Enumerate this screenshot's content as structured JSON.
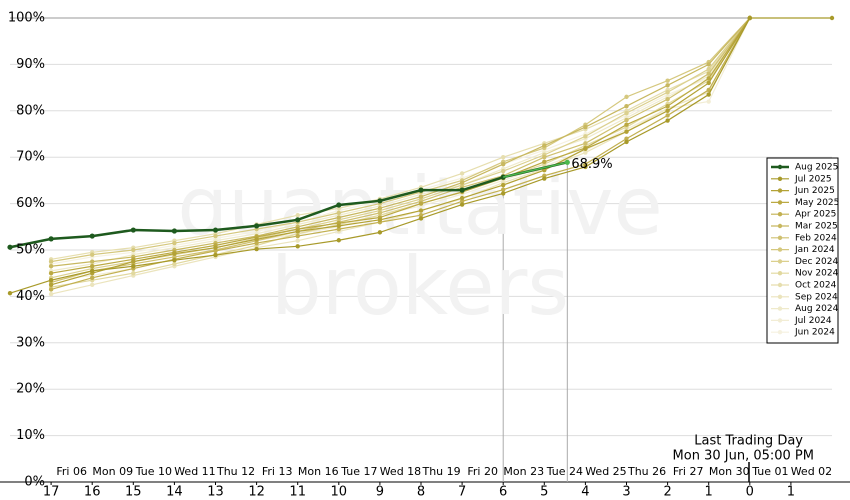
{
  "chart_data": {
    "type": "line",
    "watermark": [
      "quantitative",
      "brokers"
    ],
    "annotations": [
      "Last Trading Day",
      "Mon 30 Jun, 05:00 PM"
    ],
    "xlim": [
      -1,
      19
    ],
    "ylim": [
      0,
      100
    ],
    "yticks": [
      {
        "value": 0,
        "label": "0%"
      },
      {
        "value": 10,
        "label": "10%"
      },
      {
        "value": 20,
        "label": "20%"
      },
      {
        "value": 30,
        "label": "30%"
      },
      {
        "value": 40,
        "label": "40%"
      },
      {
        "value": 50,
        "label": "50%"
      },
      {
        "value": 60,
        "label": "60%"
      },
      {
        "value": 70,
        "label": "70%"
      },
      {
        "value": 80,
        "label": "80%"
      },
      {
        "value": 90,
        "label": "90%"
      },
      {
        "value": 100,
        "label": "100%"
      }
    ],
    "xticks": [
      {
        "value": 0,
        "label": "17"
      },
      {
        "value": 1,
        "label": "16"
      },
      {
        "value": 2,
        "label": "15"
      },
      {
        "value": 3,
        "label": "14"
      },
      {
        "value": 4,
        "label": "13"
      },
      {
        "value": 5,
        "label": "12"
      },
      {
        "value": 6,
        "label": "11"
      },
      {
        "value": 7,
        "label": "10"
      },
      {
        "value": 8,
        "label": "9"
      },
      {
        "value": 9,
        "label": "8"
      },
      {
        "value": 10,
        "label": "7"
      },
      {
        "value": 11,
        "label": "6"
      },
      {
        "value": 12,
        "label": "5"
      },
      {
        "value": 13,
        "label": "4"
      },
      {
        "value": 14,
        "label": "3"
      },
      {
        "value": 15,
        "label": "2"
      },
      {
        "value": 16,
        "label": "1"
      },
      {
        "value": 17,
        "label": "0"
      },
      {
        "value": 18,
        "label": "1"
      }
    ],
    "date_ticks": [
      {
        "value": 0.5,
        "label": "Fri 06"
      },
      {
        "value": 1.5,
        "label": "Mon 09"
      },
      {
        "value": 2.5,
        "label": "Tue 10"
      },
      {
        "value": 3.5,
        "label": "Wed 11"
      },
      {
        "value": 4.5,
        "label": "Thu 12"
      },
      {
        "value": 5.5,
        "label": "Fri 13"
      },
      {
        "value": 6.5,
        "label": "Mon 16"
      },
      {
        "value": 7.5,
        "label": "Tue 17"
      },
      {
        "value": 8.5,
        "label": "Wed 18"
      },
      {
        "value": 9.5,
        "label": "Thu 19"
      },
      {
        "value": 10.5,
        "label": "Fri 20"
      },
      {
        "value": 11.5,
        "label": "Mon 23"
      },
      {
        "value": 12.5,
        "label": "Tue 24"
      },
      {
        "value": 13.5,
        "label": "Wed 25"
      },
      {
        "value": 14.5,
        "label": "Thu 26"
      },
      {
        "value": 15.5,
        "label": "Fri 27"
      },
      {
        "value": 16.5,
        "label": "Mon 30"
      },
      {
        "value": 17.5,
        "label": "Tue 01"
      },
      {
        "value": 18.5,
        "label": "Wed 02"
      }
    ],
    "grid": true,
    "series": [
      {
        "name": "Aug 2025",
        "color": "#1e5a1e",
        "live_color": "#4cb84c",
        "x": [
          -1,
          0,
          1,
          2,
          3,
          4,
          5,
          6,
          7,
          8,
          9,
          10,
          11,
          12.56
        ],
        "values": [
          50.6,
          52.4,
          53.0,
          54.3,
          54.1,
          54.3,
          55.2,
          56.5,
          59.7,
          60.6,
          62.9,
          62.9,
          65.7,
          68.9
        ],
        "value_labels": [
          null,
          null,
          null,
          null,
          null,
          null,
          null,
          null,
          null,
          null,
          null,
          null,
          null,
          "68.9%"
        ]
      },
      {
        "name": "Jul 2025",
        "color": "#a89a2a",
        "x": [
          -1,
          0,
          1,
          2,
          3,
          4,
          5,
          6,
          7,
          8,
          9,
          10,
          11,
          12,
          13,
          14,
          15,
          16,
          17,
          19
        ],
        "values": [
          40.7,
          43.5,
          45.5,
          46.5,
          47.8,
          48.9,
          50.2,
          50.8,
          52.1,
          53.8,
          56.8,
          59.8,
          62.2,
          65.4,
          67.9,
          73.3,
          77.9,
          83.5,
          100,
          100
        ]
      },
      {
        "name": "Jun 2025",
        "color": "#b3a236",
        "x": [
          0,
          1,
          2,
          3,
          4,
          5,
          6,
          7,
          8,
          9,
          10,
          11,
          12,
          13,
          14,
          15,
          16,
          17
        ],
        "values": [
          42.5,
          45.0,
          47.5,
          49.2,
          50.5,
          52.3,
          54.0,
          55.2,
          56.5,
          58.5,
          61.2,
          64.0,
          67.2,
          71.8,
          75.5,
          80.0,
          86.0,
          100
        ]
      },
      {
        "name": "May 2025",
        "color": "#bba942",
        "x": [
          0,
          1,
          2,
          3,
          4,
          5,
          6,
          7,
          8,
          9,
          10,
          11,
          12,
          13,
          14,
          15,
          16,
          17
        ],
        "values": [
          45.0,
          46.5,
          48.0,
          49.5,
          51.0,
          52.8,
          54.5,
          55.8,
          57.0,
          60.0,
          62.5,
          65.5,
          69.0,
          72.0,
          77.0,
          81.0,
          87.0,
          100
        ]
      },
      {
        "name": "Apr 2025",
        "color": "#c2b050",
        "x": [
          0,
          1,
          2,
          3,
          4,
          5,
          6,
          7,
          8,
          9,
          10,
          11,
          12,
          13,
          14,
          15,
          16,
          17
        ],
        "values": [
          41.5,
          44.0,
          46.0,
          48.0,
          49.8,
          51.5,
          53.0,
          54.5,
          56.0,
          57.5,
          60.5,
          63.0,
          66.0,
          68.5,
          74.0,
          79.0,
          84.5,
          100
        ]
      },
      {
        "name": "Mar 2025",
        "color": "#c8b860",
        "x": [
          0,
          1,
          2,
          3,
          4,
          5,
          6,
          7,
          8,
          9,
          10,
          11,
          12,
          13,
          14,
          15,
          16,
          17
        ],
        "values": [
          46.5,
          47.5,
          48.5,
          50.0,
          51.5,
          53.0,
          55.0,
          57.0,
          59.0,
          61.5,
          64.5,
          68.5,
          72.5,
          76.5,
          81.0,
          85.5,
          90.0,
          100
        ]
      },
      {
        "name": "Feb 2024",
        "color": "#cfc070",
        "x": [
          0,
          1,
          2,
          3,
          4,
          5,
          6,
          7,
          8,
          9,
          10,
          11,
          12,
          13,
          14,
          15,
          16,
          17
        ],
        "values": [
          43.0,
          45.5,
          47.0,
          48.5,
          50.0,
          52.0,
          54.0,
          56.0,
          58.0,
          60.5,
          63.5,
          66.0,
          70.0,
          73.0,
          78.0,
          82.5,
          88.0,
          100
        ]
      },
      {
        "name": "Jan 2024",
        "color": "#d5c87e",
        "x": [
          0,
          1,
          2,
          3,
          4,
          5,
          6,
          7,
          8,
          9,
          10,
          11,
          12,
          13,
          14,
          15,
          16,
          17
        ],
        "values": [
          47.5,
          49.0,
          50.0,
          51.5,
          53.0,
          54.5,
          56.0,
          58.0,
          60.0,
          62.5,
          65.0,
          69.0,
          72.0,
          77.0,
          83.0,
          86.5,
          90.5,
          100
        ]
      },
      {
        "name": "Dec 2024",
        "color": "#dbd08e",
        "x": [
          0,
          1,
          2,
          3,
          4,
          5,
          6,
          7,
          8,
          9,
          10,
          11,
          12,
          13,
          14,
          15,
          16,
          17
        ],
        "values": [
          44.0,
          46.0,
          47.5,
          49.0,
          50.5,
          52.5,
          54.5,
          56.5,
          58.5,
          61.0,
          64.0,
          67.0,
          70.5,
          74.5,
          79.5,
          84.0,
          89.0,
          100
        ]
      },
      {
        "name": "Nov 2024",
        "color": "#e1d89e",
        "x": [
          0,
          1,
          2,
          3,
          4,
          5,
          6,
          7,
          8,
          9,
          10,
          11,
          12,
          13,
          14,
          15,
          16,
          17
        ],
        "values": [
          42.0,
          43.5,
          45.0,
          47.0,
          49.0,
          51.0,
          53.5,
          55.5,
          57.5,
          60.0,
          62.5,
          65.5,
          68.5,
          72.5,
          76.5,
          81.5,
          86.5,
          100
        ]
      },
      {
        "name": "Oct 2024",
        "color": "#e6deae",
        "x": [
          0,
          1,
          2,
          3,
          4,
          5,
          6,
          7,
          8,
          9,
          10,
          11,
          12,
          13,
          14,
          15,
          16,
          17
        ],
        "values": [
          48.0,
          49.5,
          50.5,
          52.0,
          53.5,
          55.5,
          57.5,
          59.0,
          61.0,
          63.5,
          66.5,
          70.0,
          73.0,
          76.0,
          80.0,
          84.5,
          88.5,
          100
        ]
      },
      {
        "name": "Sep 2024",
        "color": "#ebe4bd",
        "x": [
          0,
          1,
          2,
          3,
          4,
          5,
          6,
          7,
          8,
          9,
          10,
          11,
          12,
          13,
          14,
          15,
          16,
          17
        ],
        "values": [
          40.5,
          42.5,
          44.5,
          46.5,
          48.5,
          50.5,
          52.0,
          54.0,
          56.0,
          58.5,
          61.0,
          64.5,
          67.5,
          71.0,
          75.5,
          80.5,
          84.0,
          100
        ]
      },
      {
        "name": "Aug 2024",
        "color": "#efeacb",
        "x": [
          0,
          1,
          2,
          3,
          4,
          5,
          6,
          7,
          8,
          9,
          10,
          11,
          12,
          13,
          14,
          15,
          16,
          17
        ],
        "values": [
          45.5,
          47.0,
          49.0,
          50.5,
          52.0,
          53.5,
          55.5,
          57.5,
          59.5,
          62.0,
          64.0,
          67.5,
          71.0,
          74.0,
          78.5,
          83.0,
          87.5,
          100
        ]
      },
      {
        "name": "Jul 2024",
        "color": "#f2edd5",
        "x": [
          0,
          1,
          2,
          3,
          4,
          5,
          6,
          7,
          8,
          9,
          10,
          11,
          12,
          13,
          14,
          15,
          16,
          17
        ],
        "values": [
          43.5,
          44.5,
          46.0,
          48.0,
          50.0,
          52.0,
          53.5,
          55.0,
          57.5,
          59.5,
          62.0,
          65.0,
          68.0,
          71.5,
          76.0,
          80.5,
          82.0,
          100
        ]
      },
      {
        "name": "Jun 2024",
        "color": "#f5f1df",
        "x": [
          0,
          1,
          2,
          3,
          4,
          5,
          6,
          7,
          8,
          9,
          10,
          11,
          12,
          13,
          14,
          15,
          16,
          17
        ],
        "values": [
          47.0,
          48.5,
          49.5,
          51.0,
          52.5,
          54.0,
          56.0,
          58.5,
          60.5,
          63.0,
          65.5,
          68.5,
          71.5,
          75.0,
          79.0,
          83.5,
          87.0,
          100
        ]
      }
    ]
  }
}
